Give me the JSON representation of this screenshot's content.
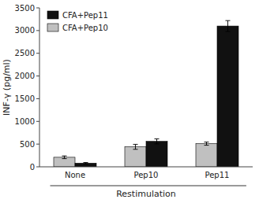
{
  "chart_data": {
    "type": "bar",
    "categories": [
      "None",
      "Pep10",
      "Pep11"
    ],
    "series": [
      {
        "name": "CFA+Pep10",
        "color": "#c0c0c0",
        "values": [
          210,
          440,
          510
        ],
        "errors": [
          30,
          55,
          35
        ]
      },
      {
        "name": "CFA+Pep11",
        "color": "#111111",
        "values": [
          80,
          560,
          3100
        ],
        "errors": [
          15,
          55,
          120
        ]
      }
    ],
    "ylabel": "INF-γ (pg/ml)",
    "xlabel": "Restimulation",
    "ylim": [
      0,
      3500
    ],
    "yticks": [
      0,
      500,
      1000,
      1500,
      2000,
      2500,
      3000,
      3500
    ],
    "grid": false,
    "legend": "upper-left"
  }
}
